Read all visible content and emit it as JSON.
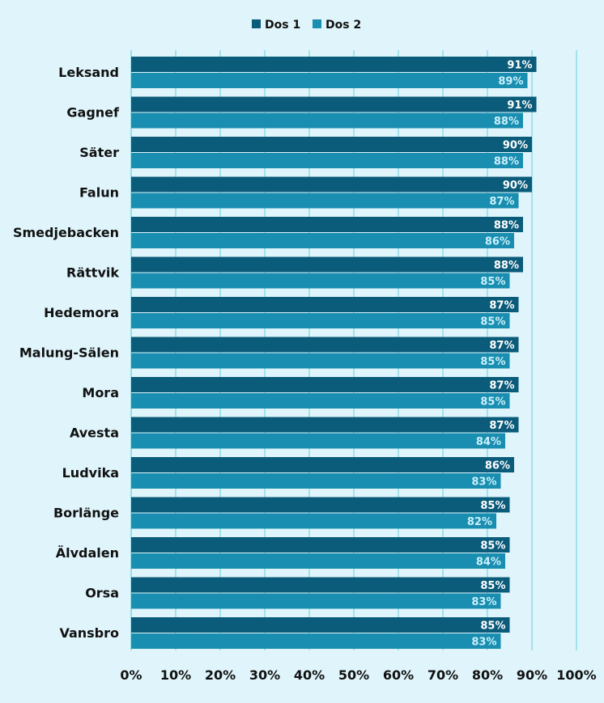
{
  "chart_data": {
    "type": "bar",
    "orientation": "horizontal",
    "categories": [
      "Leksand",
      "Gagnef",
      "Säter",
      "Falun",
      "Smedjebacken",
      "Rättvik",
      "Hedemora",
      "Malung-Sälen",
      "Mora",
      "Avesta",
      "Ludvika",
      "Borlänge",
      "Älvdalen",
      "Orsa",
      "Vansbro"
    ],
    "series": [
      {
        "name": "Dos 1",
        "color": "#0b5b7a",
        "label_color": "#ffffff",
        "values": [
          91,
          91,
          90,
          90,
          88,
          88,
          87,
          87,
          87,
          87,
          86,
          85,
          85,
          85,
          85
        ],
        "labels": [
          "91%",
          "91%",
          "90%",
          "90%",
          "88%",
          "88%",
          "87%",
          "87%",
          "87%",
          "87%",
          "86%",
          "85%",
          "85%",
          "85%",
          "85%"
        ]
      },
      {
        "name": "Dos 2",
        "color": "#1a8eb0",
        "label_color": "#c9f1fb",
        "values": [
          89,
          88,
          88,
          87,
          86,
          85,
          85,
          85,
          85,
          84,
          83,
          82,
          84,
          83,
          83
        ],
        "labels": [
          "89%",
          "88%",
          "88%",
          "87%",
          "86%",
          "85%",
          "85%",
          "85%",
          "85%",
          "84%",
          "83%",
          "82%",
          "84%",
          "83%",
          "83%"
        ]
      }
    ],
    "xlim": [
      0,
      100
    ],
    "x_ticks": [
      0,
      10,
      20,
      30,
      40,
      50,
      60,
      70,
      80,
      90,
      100
    ],
    "x_tick_labels": [
      "0%",
      "10%",
      "20%",
      "30%",
      "40%",
      "50%",
      "60%",
      "70%",
      "80%",
      "90%",
      "100%"
    ],
    "grid": true,
    "grid_color": "#8fdbe8",
    "legend_position": "top-center",
    "title": "",
    "xlabel": "",
    "ylabel": ""
  }
}
